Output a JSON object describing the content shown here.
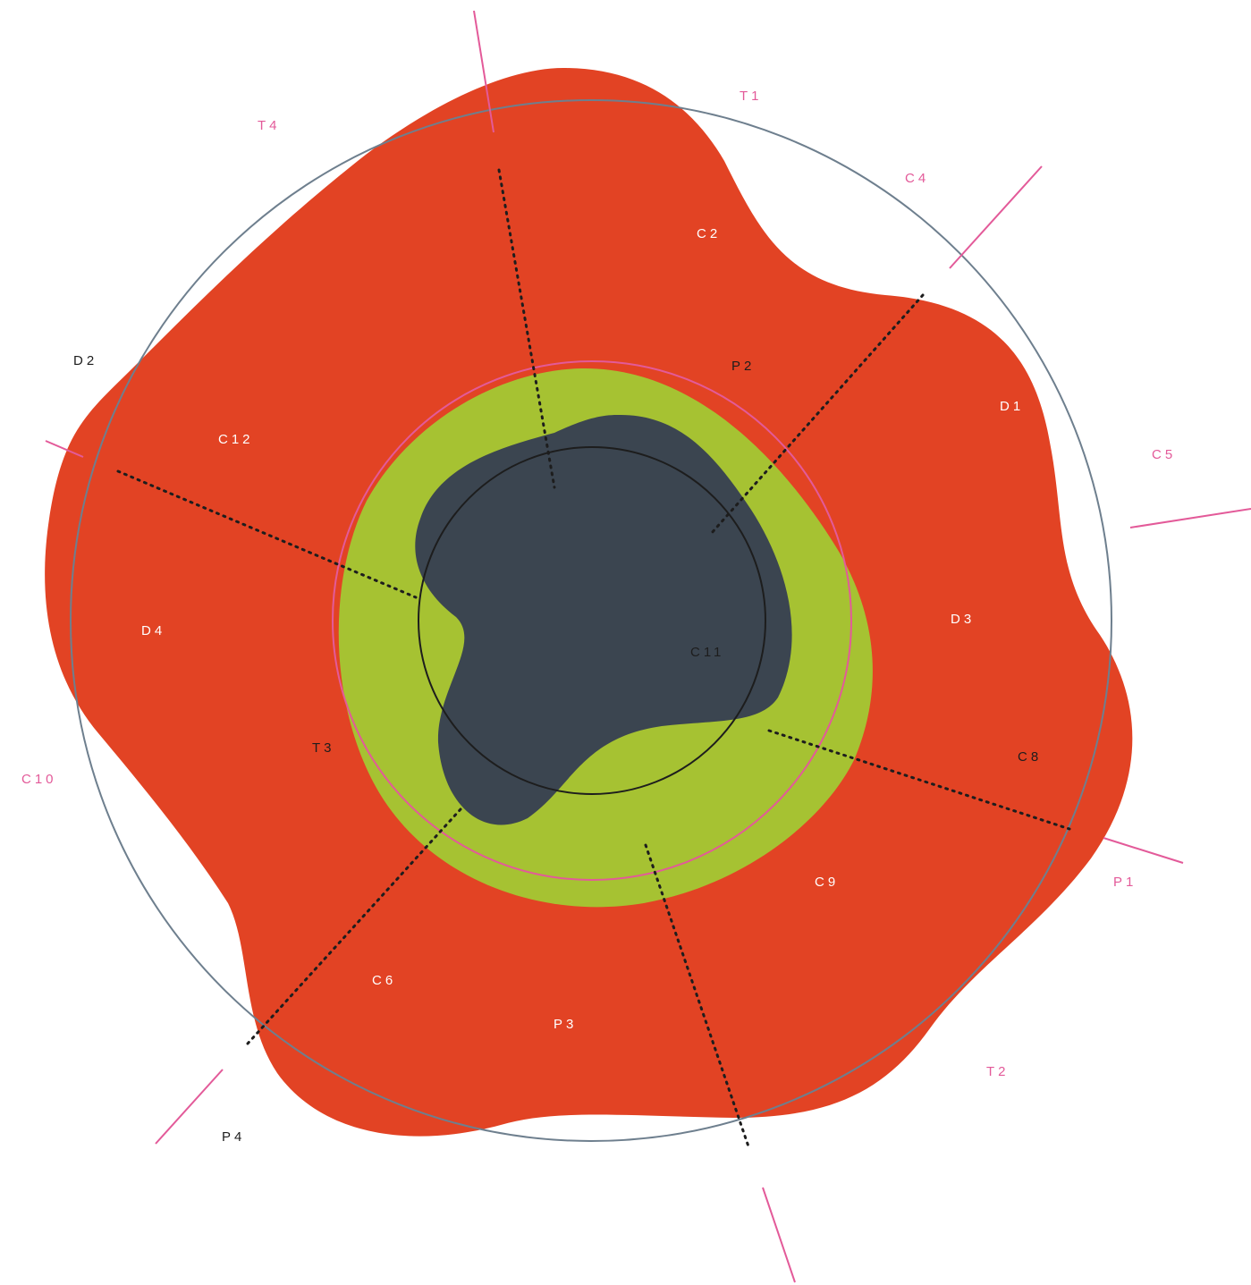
{
  "colors": {
    "background": "#ffffff",
    "outer_region": "#e24324",
    "middle_region": "#a6c232",
    "inner_region": "#3b4550",
    "outer_circle": "#6e7f8e",
    "pink_accent": "#e35a99",
    "inner_circle": "#1d1d1d",
    "dotted_radius": "#1d1d1d",
    "label_white": "#ffffff",
    "label_dark": "#1d1d1d",
    "label_pink": "#e35a99"
  },
  "labels": {
    "t1": "T1",
    "t2": "T2",
    "t3": "T3",
    "t4": "T4",
    "c2": "C2",
    "c4": "C4",
    "c5": "C5",
    "c6": "C6",
    "c8": "C8",
    "c9": "C9",
    "c10": "C10",
    "c11": "C11",
    "c12": "C12",
    "d1": "D1",
    "d2": "D2",
    "d3": "D3",
    "d4": "D4",
    "p1": "P1",
    "p2": "P2",
    "p3": "P3",
    "p4": "P4"
  }
}
